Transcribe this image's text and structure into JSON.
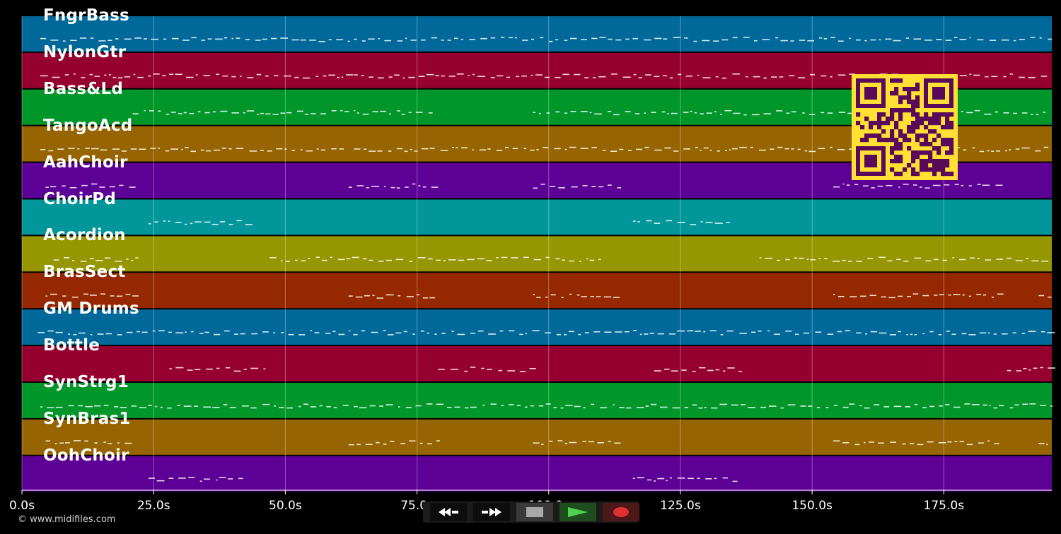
{
  "timeline": {
    "tick_labels": [
      "0.0s",
      "25.0s",
      "50.0s",
      "75.0s",
      "100.0s",
      "125.0s",
      "150.0s",
      "175.0s"
    ],
    "tick_values": [
      0,
      25,
      50,
      75,
      100,
      125,
      150,
      175
    ],
    "max_seconds": 195.5
  },
  "tracks": [
    {
      "name": "FngrBass",
      "color": "#00699a"
    },
    {
      "name": "NylonGtr",
      "color": "#960031"
    },
    {
      "name": "Bass&Ld",
      "color": "#00962a"
    },
    {
      "name": "TangoAcd",
      "color": "#966400"
    },
    {
      "name": "AahChoir",
      "color": "#5c0096"
    },
    {
      "name": "ChoirPd",
      "color": "#00969a"
    },
    {
      "name": "Acordion",
      "color": "#969600"
    },
    {
      "name": "BrasSect",
      "color": "#962800"
    },
    {
      "name": "GM Drums",
      "color": "#00699a"
    },
    {
      "name": "Bottle",
      "color": "#960031"
    },
    {
      "name": "SynStrg1",
      "color": "#00962a"
    },
    {
      "name": "SynBras1",
      "color": "#966400"
    },
    {
      "name": "OohChoir",
      "color": "#5c0096"
    }
  ],
  "qr": {
    "background": "#ffe033",
    "foreground": "#5a0a5a"
  },
  "copyright": "© www.midifiles.com",
  "transport": {
    "rewind": "rewind-icon",
    "fast_forward": "fast-forward-icon",
    "stop": "stop-icon",
    "play": "play-icon",
    "record": "record-icon"
  }
}
